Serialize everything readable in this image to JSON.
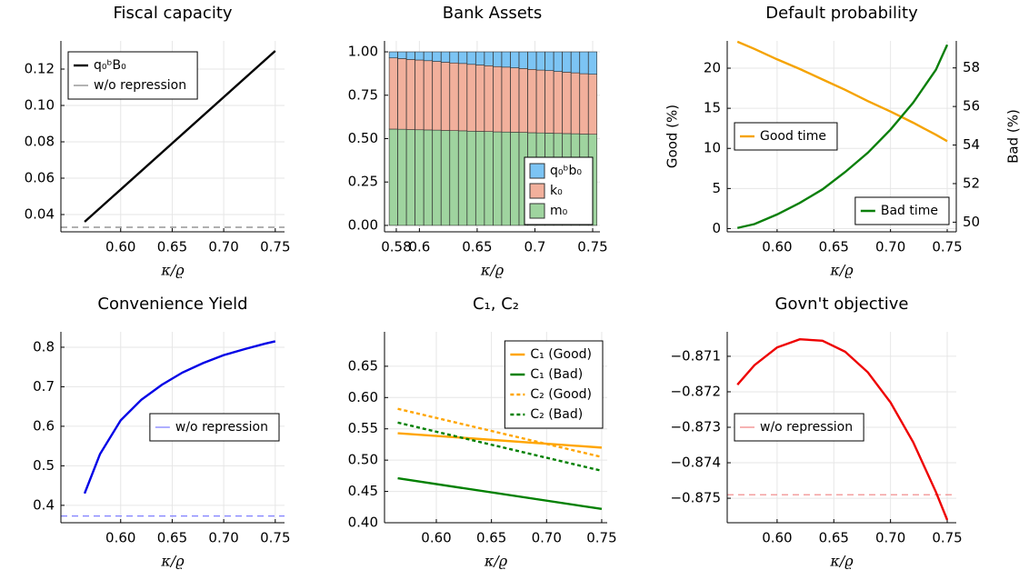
{
  "chart_data": [
    {
      "type": "line",
      "title": "Fiscal capacity",
      "xlabel": "κ/ϱ",
      "x": [
        0.565,
        0.75
      ],
      "series": [
        {
          "name": "q₀ᵇB₀",
          "color": "#000000",
          "values": [
            0.036,
            0.13
          ]
        }
      ],
      "reference": {
        "name": "w/o repression",
        "color": "#808080",
        "value": 0.033,
        "dash": true
      },
      "xlim": [
        0.542,
        0.759
      ],
      "xticks": [
        {
          "value": 0.6,
          "label": "0.60"
        },
        0.65,
        {
          "value": 0.7,
          "label": "0.70"
        },
        0.75
      ],
      "ylim": [
        0.0305,
        0.1355
      ],
      "yticks": [
        0.04,
        0.06,
        0.08,
        {
          "value": 0.1,
          "label": "0.10"
        },
        0.12
      ],
      "grid": true,
      "legend": "top-left"
    },
    {
      "type": "stacked_bar",
      "title": "Bank Assets",
      "xlabel": "κ/ϱ",
      "x": [
        0.5775,
        0.585,
        0.5925,
        0.6,
        0.6075,
        0.615,
        0.6225,
        0.63,
        0.6375,
        0.645,
        0.6525,
        0.66,
        0.6675,
        0.675,
        0.6825,
        0.69,
        0.6975,
        0.705,
        0.7125,
        0.72,
        0.7275,
        0.735,
        0.7425,
        0.75
      ],
      "series": [
        {
          "name": "m₀",
          "color": "#9fd49f",
          "values": [
            0.555,
            0.554,
            0.552,
            0.551,
            0.55,
            0.549,
            0.547,
            0.546,
            0.545,
            0.543,
            0.542,
            0.541,
            0.539,
            0.538,
            0.537,
            0.536,
            0.534,
            0.533,
            0.532,
            0.53,
            0.529,
            0.528,
            0.526,
            0.525
          ]
        },
        {
          "name": "k₀",
          "color": "#f2b09c",
          "values": [
            0.41,
            0.407,
            0.404,
            0.402,
            0.399,
            0.396,
            0.393,
            0.39,
            0.388,
            0.385,
            0.382,
            0.379,
            0.376,
            0.374,
            0.371,
            0.368,
            0.365,
            0.362,
            0.36,
            0.357,
            0.354,
            0.351,
            0.348,
            0.346
          ]
        },
        {
          "name": "q₀ᵇb₀",
          "color": "#7cc4f4",
          "values": [
            0.035,
            0.039,
            0.044,
            0.047,
            0.051,
            0.055,
            0.06,
            0.064,
            0.067,
            0.072,
            0.076,
            0.08,
            0.085,
            0.088,
            0.092,
            0.096,
            0.101,
            0.105,
            0.108,
            0.113,
            0.117,
            0.121,
            0.126,
            0.129
          ]
        }
      ],
      "xlim": [
        0.5698,
        0.7563
      ],
      "xticks": [
        0.58,
        0.6,
        0.65,
        0.7,
        0.75
      ],
      "ylim": [
        -0.037,
        1.063
      ],
      "yticks": [
        {
          "value": 0,
          "label": "0.00"
        },
        0.25,
        {
          "value": 0.5,
          "label": "0.50"
        },
        0.75,
        {
          "value": 1,
          "label": "1.00"
        }
      ],
      "grid": true,
      "legend": "bottom-right"
    },
    {
      "type": "line",
      "title": "Default probability",
      "xlabel": "κ/ϱ",
      "ylabel": "Good (%)",
      "y2label": "Bad (%)",
      "x": [
        0.565,
        0.58,
        0.6,
        0.62,
        0.64,
        0.66,
        0.68,
        0.7,
        0.72,
        0.74,
        0.75
      ],
      "series": [
        {
          "name": "Good time",
          "color": "#f5a300",
          "values": [
            23.3,
            22.4,
            21.1,
            19.9,
            18.6,
            17.3,
            15.9,
            14.6,
            13.2,
            11.7,
            10.9
          ],
          "legend": "left"
        },
        {
          "name": "Bad time",
          "color": "#0a7f0a",
          "values": [
            49.7,
            49.9,
            50.4,
            51.0,
            51.7,
            52.6,
            53.6,
            54.8,
            56.2,
            57.9,
            59.2
          ],
          "axis": "y2",
          "legend": "bottom-right"
        }
      ],
      "xlim": [
        0.556,
        0.758
      ],
      "xticks": [
        {
          "value": 0.6,
          "label": "0.60"
        },
        0.65,
        {
          "value": 0.7,
          "label": "0.70"
        },
        0.75
      ],
      "ylim": [
        -0.4,
        23.4
      ],
      "yticks": [
        0,
        5,
        10,
        15,
        20
      ],
      "y2lim": [
        49.5,
        59.4
      ],
      "y2ticks": [
        50,
        52,
        54,
        56,
        58
      ],
      "grid": true
    },
    {
      "type": "line",
      "title": "Convenience Yield",
      "xlabel": "κ/ϱ",
      "x": [
        0.565,
        0.58,
        0.6,
        0.62,
        0.64,
        0.66,
        0.68,
        0.7,
        0.72,
        0.74,
        0.75
      ],
      "series": [
        {
          "color": "#0000e6",
          "values": [
            0.43,
            0.53,
            0.615,
            0.667,
            0.705,
            0.736,
            0.76,
            0.78,
            0.795,
            0.809,
            0.815
          ]
        }
      ],
      "reference": {
        "name": "w/o repression",
        "color": "#7f7fff",
        "value": 0.373,
        "dash": true
      },
      "xlim": [
        0.542,
        0.759
      ],
      "xticks": [
        {
          "value": 0.6,
          "label": "0.60"
        },
        0.65,
        {
          "value": 0.7,
          "label": "0.70"
        },
        0.75
      ],
      "ylim": [
        0.356,
        0.839
      ],
      "yticks": [
        0.4,
        0.5,
        0.6,
        0.7,
        0.8
      ],
      "grid": true,
      "legend": "right"
    },
    {
      "type": "line",
      "title": "C₁, C₂",
      "xlabel": "κ/ϱ",
      "x": [
        0.565,
        0.75
      ],
      "series": [
        {
          "name": "C₁ (Good)",
          "color": "#ffa500",
          "values": [
            0.543,
            0.52
          ]
        },
        {
          "name": "C₁ (Bad)",
          "color": "#008000",
          "values": [
            0.471,
            0.422
          ]
        },
        {
          "name": "C₂ (Good)",
          "color": "#ffa500",
          "values": [
            0.582,
            0.505
          ],
          "dash": true
        },
        {
          "name": "C₂ (Bad)",
          "color": "#008000",
          "values": [
            0.56,
            0.483
          ],
          "dash": true
        }
      ],
      "xlim": [
        0.553,
        0.755
      ],
      "xticks": [
        {
          "value": 0.6,
          "label": "0.60"
        },
        0.65,
        {
          "value": 0.7,
          "label": "0.70"
        },
        0.75
      ],
      "ylim": [
        0.4,
        0.705
      ],
      "yticks": [
        {
          "value": 0.4,
          "label": "0.40"
        },
        0.45,
        {
          "value": 0.5,
          "label": "0.50"
        },
        0.55,
        {
          "value": 0.6,
          "label": "0.60"
        },
        0.65
      ],
      "grid": true,
      "legend": "top-right"
    },
    {
      "type": "line",
      "title": "Govn't objective",
      "xlabel": "κ/ϱ",
      "x": [
        0.565,
        0.58,
        0.6,
        0.62,
        0.64,
        0.66,
        0.68,
        0.7,
        0.72,
        0.74,
        0.75
      ],
      "series": [
        {
          "color": "#ee0000",
          "values": [
            -0.8718,
            -0.87125,
            -0.87075,
            -0.87052,
            -0.87056,
            -0.87087,
            -0.87145,
            -0.8723,
            -0.87342,
            -0.87482,
            -0.87561
          ]
        }
      ],
      "reference": {
        "name": "w/o repression",
        "color": "#f08080",
        "value": -0.8749,
        "dash": true
      },
      "xlim": [
        0.556,
        0.758
      ],
      "xticks": [
        {
          "value": 0.6,
          "label": "0.60"
        },
        0.65,
        {
          "value": 0.7,
          "label": "0.70"
        },
        0.75
      ],
      "ylim": [
        -0.87569,
        -0.87031
      ],
      "yticks": [
        {
          "value": -0.871,
          "label": "−0.871"
        },
        {
          "value": -0.872,
          "label": "−0.872"
        },
        {
          "value": -0.873,
          "label": "−0.873"
        },
        {
          "value": -0.874,
          "label": "−0.874"
        },
        {
          "value": -0.875,
          "label": "−0.875"
        }
      ],
      "grid": true,
      "legend": "left"
    }
  ]
}
